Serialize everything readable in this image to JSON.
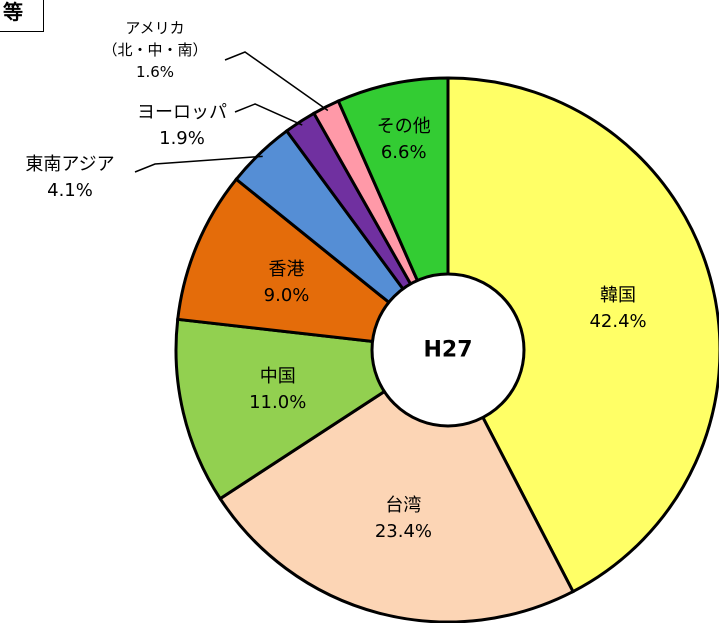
{
  "chart_data": {
    "type": "pie",
    "corner_label": "等",
    "center_label": "H27",
    "categories": [
      "韓国",
      "台湾",
      "中国",
      "香港",
      "東南アジア",
      "ヨーロッパ",
      "アメリカ\n（北・中・南）",
      "その他"
    ],
    "values": [
      42.4,
      23.4,
      11.0,
      9.0,
      4.1,
      1.9,
      1.6,
      6.6
    ],
    "value_labels": [
      "42.4%",
      "23.4%",
      "11.0%",
      "9.0%",
      "4.1%",
      "1.9%",
      "1.6%",
      "6.6%"
    ],
    "colors": [
      "#ffff66",
      "#fcd5b5",
      "#92d050",
      "#e46c0a",
      "#558ed5",
      "#7030a0",
      "#ff99a8",
      "#33cc33"
    ]
  }
}
